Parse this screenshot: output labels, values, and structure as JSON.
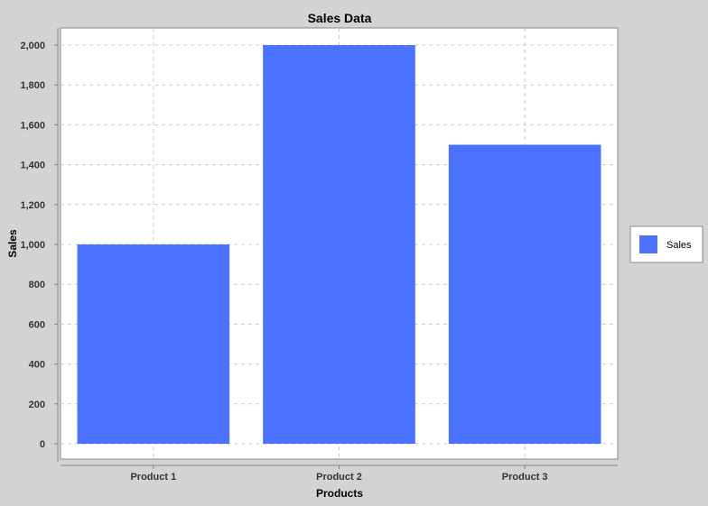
{
  "chart_data": {
    "type": "bar",
    "title": "Sales Data",
    "xlabel": "Products",
    "ylabel": "Sales",
    "categories": [
      "Product 1",
      "Product 2",
      "Product 3"
    ],
    "series": [
      {
        "name": "Sales",
        "values": [
          1000,
          2000,
          1500
        ],
        "color": "#4a72ff"
      }
    ],
    "ylim": [
      0,
      2000
    ],
    "yticks": [
      0,
      200,
      400,
      600,
      800,
      1000,
      1200,
      1400,
      1600,
      1800,
      2000
    ],
    "ytick_labels": [
      "0",
      "200",
      "400",
      "600",
      "800",
      "1,000",
      "1,200",
      "1,400",
      "1,600",
      "1,800",
      "2,000"
    ],
    "grid": true,
    "legend_position": "right"
  }
}
